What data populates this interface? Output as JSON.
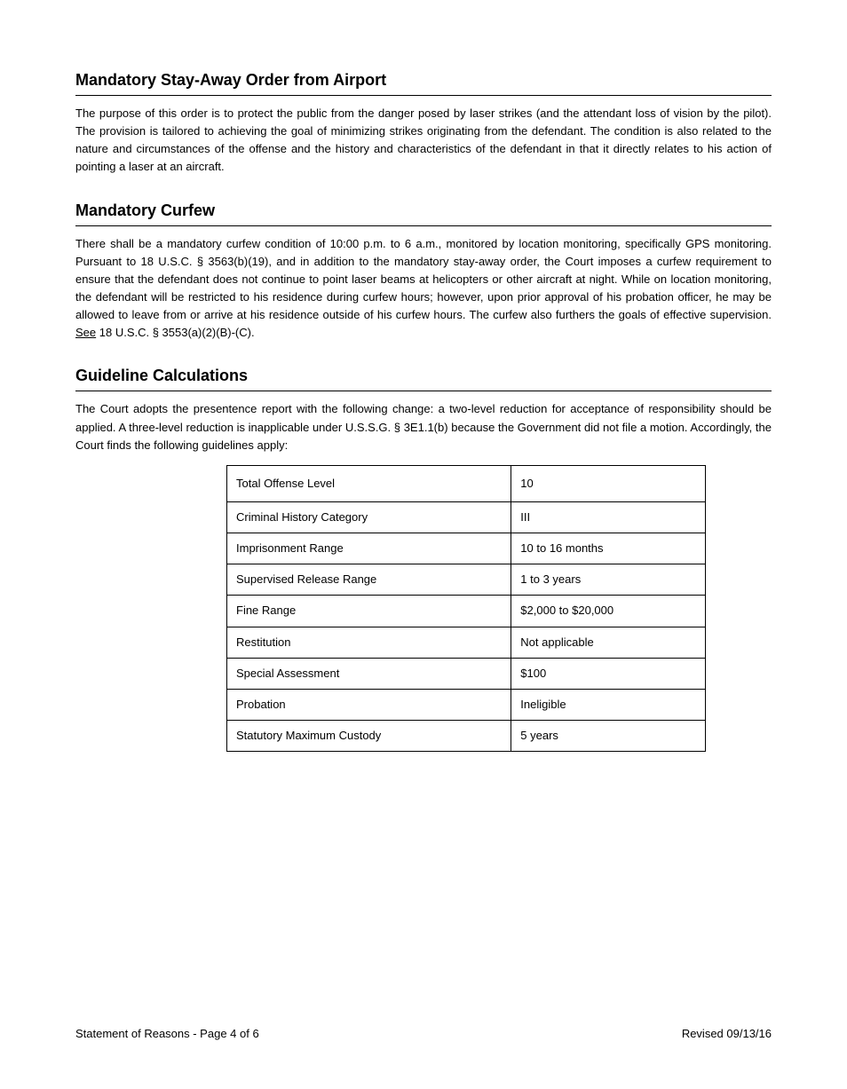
{
  "sections": [
    {
      "title": "Mandatory Stay-Away Order from Airport",
      "body": "The purpose of this order is to protect the public from the danger posed by laser strikes (and the attendant loss of vision by the pilot). The provision is tailored to achieving the goal of minimizing strikes originating from the defendant. The condition is also related to the nature and circumstances of the offense and the history and characteristics of the defendant in that it directly relates to his action of pointing a laser at an aircraft."
    },
    {
      "title": "Mandatory Curfew",
      "body_parts": [
        "There shall be a mandatory curfew condition of 10:00 p.m. to 6 a.m., monitored by location monitoring, specifically GPS monitoring. Pursuant to 18 U.S.C. § 3563(b)(19), and in addition to the mandatory stay-away order, the Court imposes a curfew requirement to ensure that the defendant does not continue to point laser beams at helicopters or other aircraft at night. While on location monitoring, the defendant will be restricted to his residence during curfew hours; however, upon prior approval of his probation officer, he may be allowed to leave from or arrive at his residence outside of his curfew hours. The curfew also furthers the goals of effective supervision. ",
        {
          "underline": "See"
        },
        " 18 U.S.C. § 3553(a)(2)(B)-(C)."
      ]
    },
    {
      "title": "Guideline Calculations",
      "body": "The Court adopts the presentence report with the following change: a two-level reduction for acceptance of responsibility should be applied. A three-level reduction is inapplicable under U.S.S.G. § 3E1.1(b) because the Government did not file a motion. Accordingly, the Court finds the following guidelines apply:",
      "table": {
        "columns": [
          "Total Offense Level",
          "10"
        ],
        "rows": [
          [
            "Criminal History Category",
            "III"
          ],
          [
            "Imprisonment Range",
            "10 to 16 months"
          ],
          [
            "Supervised Release Range",
            "1 to 3 years"
          ],
          [
            "Fine Range",
            "$2,000 to $20,000"
          ],
          [
            "Restitution",
            "Not applicable"
          ],
          [
            "Special Assessment",
            "$100"
          ],
          [
            "Probation",
            "Ineligible"
          ],
          [
            "Statutory Maximum Custody",
            "5 years"
          ]
        ]
      }
    }
  ],
  "footer": {
    "left": "Statement of Reasons - Page 4 of 6",
    "right": "Revised 09/13/16"
  },
  "colors": {
    "text": "#000000",
    "background": "#ffffff",
    "border": "#000000"
  },
  "typography": {
    "title_fontsize": 18,
    "body_fontsize": 13,
    "footer_fontsize": 13
  }
}
